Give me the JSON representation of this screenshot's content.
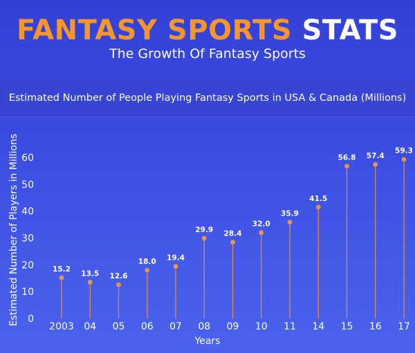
{
  "header": {
    "title_accent": "FANTASY SPORTS",
    "title_plain": "STATS",
    "subtitle": "The Growth Of Fantasy Sports"
  },
  "colors": {
    "accent": "#f5962c",
    "stem": "#e08a4a",
    "point": "#e9954f"
  },
  "chart_data": {
    "type": "scatter",
    "title": "Estimated Number of People Playing Fantasy Sports in USA & Canada (Millions)",
    "xlabel": "Years",
    "ylabel": "Estimated Number of Players in Millions",
    "categories": [
      "2003",
      "04",
      "05",
      "06",
      "07",
      "08",
      "09",
      "10",
      "11",
      "14",
      "15",
      "16",
      "17"
    ],
    "values": [
      15.2,
      13.5,
      12.6,
      18.0,
      19.4,
      29.9,
      28.4,
      32.0,
      35.9,
      41.5,
      56.8,
      57.4,
      59.3
    ],
    "data_labels": [
      "15.2",
      "13.5",
      "12.6",
      "18.0",
      "19.4",
      "29.9",
      "28.4",
      "32.0",
      "35.9",
      "41.5",
      "56.8",
      "57.4",
      "59.3"
    ],
    "yticks": [
      "0",
      "10",
      "20",
      "30",
      "40",
      "50",
      "60"
    ],
    "ylim": [
      0,
      60
    ],
    "style": "lollipop",
    "grid": false
  }
}
